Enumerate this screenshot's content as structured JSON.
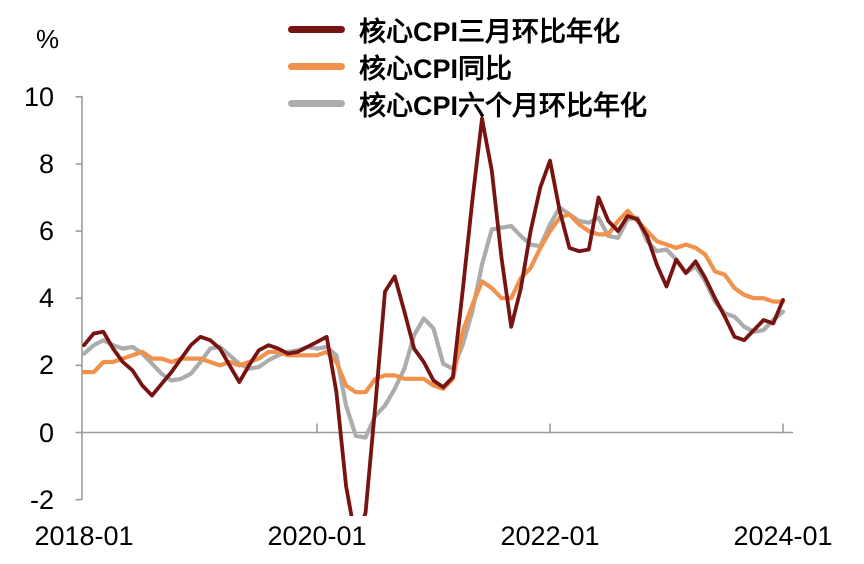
{
  "chart": {
    "percent_label": "%",
    "axis_color": "#9C9C9C",
    "text_color": "#000000"
  },
  "chart_data": {
    "type": "line",
    "title": "",
    "xlabel": "",
    "ylabel": "%",
    "ylim": [
      -2,
      10
    ],
    "grid": false,
    "legend_position": "top",
    "x_start": "2018-01",
    "x_end": "2024-01",
    "x_frequency": "monthly",
    "x_tick_labels": [
      "2018-01",
      "2020-01",
      "2022-01",
      "2024-01"
    ],
    "x_tick_months": [
      0,
      24,
      48,
      72
    ],
    "y_tick_labels": [
      "10",
      "8",
      "6",
      "4",
      "2",
      "0",
      "-2"
    ],
    "y_ticks": [
      10,
      8,
      6,
      4,
      2,
      0,
      -2
    ],
    "series": [
      {
        "name": "核心CPI三月环比年化",
        "color": "#771411",
        "width": 3.8,
        "values": [
          2.6,
          2.95,
          3.0,
          2.5,
          2.1,
          1.85,
          1.4,
          1.1,
          1.45,
          1.8,
          2.2,
          2.6,
          2.85,
          2.75,
          2.5,
          2.0,
          1.5,
          2.0,
          2.45,
          2.6,
          2.5,
          2.35,
          2.4,
          2.55,
          2.7,
          2.85,
          1.2,
          -1.6,
          -3.2,
          -2.4,
          0.8,
          4.2,
          4.65,
          3.6,
          2.5,
          2.1,
          1.55,
          1.35,
          1.65,
          4.2,
          6.9,
          9.35,
          7.8,
          5.2,
          3.15,
          4.3,
          6.0,
          7.3,
          8.1,
          6.6,
          5.5,
          5.4,
          5.45,
          7.0,
          6.3,
          6.0,
          6.45,
          6.35,
          5.85,
          5.0,
          4.35,
          5.15,
          4.75,
          5.1,
          4.6,
          4.0,
          3.45,
          2.85,
          2.75,
          3.05,
          3.35,
          3.25,
          3.95
        ]
      },
      {
        "name": "核心CPI同比",
        "color": "#F0914C",
        "width": 4.2,
        "values": [
          1.8,
          1.8,
          2.1,
          2.1,
          2.2,
          2.3,
          2.4,
          2.2,
          2.2,
          2.1,
          2.2,
          2.2,
          2.2,
          2.1,
          2.0,
          2.1,
          2.0,
          2.1,
          2.2,
          2.4,
          2.4,
          2.3,
          2.3,
          2.3,
          2.3,
          2.4,
          2.1,
          1.4,
          1.2,
          1.2,
          1.6,
          1.7,
          1.7,
          1.6,
          1.6,
          1.6,
          1.4,
          1.3,
          1.6,
          3.0,
          3.8,
          4.5,
          4.3,
          4.0,
          4.0,
          4.6,
          4.9,
          5.5,
          6.0,
          6.4,
          6.5,
          6.2,
          6.0,
          5.9,
          5.9,
          6.3,
          6.6,
          6.3,
          6.0,
          5.7,
          5.6,
          5.5,
          5.6,
          5.5,
          5.3,
          4.8,
          4.7,
          4.3,
          4.1,
          4.0,
          4.0,
          3.9,
          3.9
        ]
      },
      {
        "name": "核心CPI六个月环比年化",
        "color": "#ACACAC",
        "width": 4.2,
        "values": [
          2.35,
          2.6,
          2.75,
          2.6,
          2.5,
          2.55,
          2.35,
          2.05,
          1.75,
          1.55,
          1.6,
          1.75,
          2.1,
          2.5,
          2.55,
          2.3,
          2.05,
          1.9,
          1.95,
          2.15,
          2.3,
          2.4,
          2.45,
          2.55,
          2.5,
          2.55,
          2.3,
          0.8,
          -0.1,
          -0.15,
          0.5,
          0.8,
          1.3,
          1.9,
          2.9,
          3.4,
          3.1,
          2.05,
          1.9,
          2.6,
          3.6,
          5.0,
          6.05,
          6.1,
          6.15,
          5.85,
          5.6,
          5.55,
          6.2,
          6.7,
          6.5,
          6.3,
          6.25,
          6.4,
          5.85,
          5.8,
          6.35,
          6.4,
          5.7,
          5.4,
          5.45,
          5.15,
          4.75,
          4.95,
          4.5,
          3.9,
          3.55,
          3.45,
          3.15,
          3.0,
          3.05,
          3.35,
          3.6
        ]
      }
    ]
  }
}
